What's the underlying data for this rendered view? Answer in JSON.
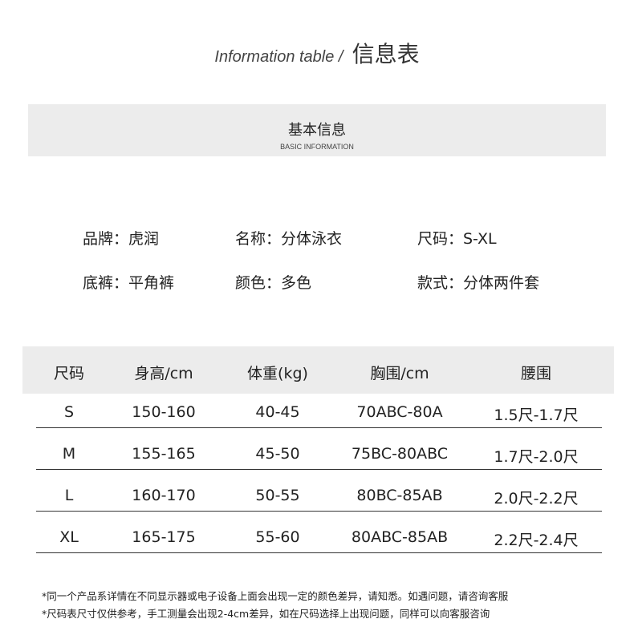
{
  "title": {
    "en": "Information table /",
    "zh": "信息表"
  },
  "section": {
    "zh": "基本信息",
    "en": "BASIC INFORMATION"
  },
  "info": [
    [
      "品牌：虎润",
      "名称：分体泳衣",
      "尺码：S-XL"
    ],
    [
      "底裤：平角裤",
      "颜色：多色",
      "款式：分体两件套"
    ]
  ],
  "table": {
    "headers": [
      "尺码",
      "身高/cm",
      "体重(kg)",
      "胸围/cm",
      "腰围"
    ],
    "rows": [
      [
        "S",
        "150-160",
        "40-45",
        "70ABC-80A",
        "1.5尺-1.7尺"
      ],
      [
        "M",
        "155-165",
        "45-50",
        "75BC-80ABC",
        "1.7尺-2.0尺"
      ],
      [
        "L",
        "160-170",
        "50-55",
        "80BC-85AB",
        "2.0尺-2.2尺"
      ],
      [
        "XL",
        "165-175",
        "55-60",
        "80ABC-85AB",
        "2.2尺-2.4尺"
      ]
    ]
  },
  "notes": [
    "*同一个产品系详情在不同显示器或电子设备上面会出现一定的颜色差异，请知悉。如遇问题，请咨询客服",
    "*尺码表尺寸仅供参考，手工测量会出现2-4cm差异，如在尺码选择上出现问题，同样可以向客服咨询"
  ]
}
